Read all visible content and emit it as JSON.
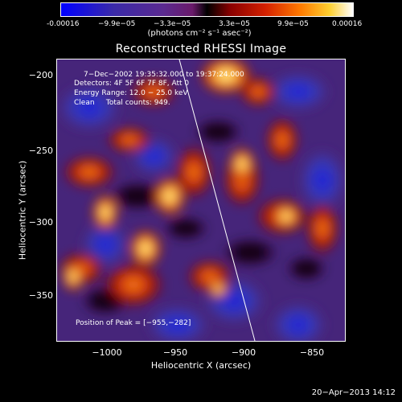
{
  "colorbar": {
    "ticks": [
      "-0.00016",
      "−9.9e−05",
      "−3.3e−05",
      "3.3e−05",
      "9.9e−05",
      "0.00016"
    ],
    "unit": "(photons cm⁻² s⁻¹ asec⁻²)"
  },
  "title": "Reconstructed RHESSI Image",
  "info": {
    "time": "7−Dec−2002 19:35:32.000 to 19:37:24.000",
    "detectors": "Detectors: 4F 5F 6F 7F 8F, Att 0",
    "energy": "Energy Range: 12.0 − 25.0 keV",
    "clean": "Clean     Total counts: 949."
  },
  "peak": "Position of Peak = [−955,−282]",
  "axes": {
    "xlabel": "Heliocentric X (arcsec)",
    "ylabel": "Heliocentric Y (arcsec)",
    "xticks": [
      "−1000",
      "−950",
      "−900",
      "−850"
    ],
    "yticks": [
      "−200",
      "−250",
      "−300",
      "−350"
    ]
  },
  "footer": "20−Apr−2013 14:12"
}
